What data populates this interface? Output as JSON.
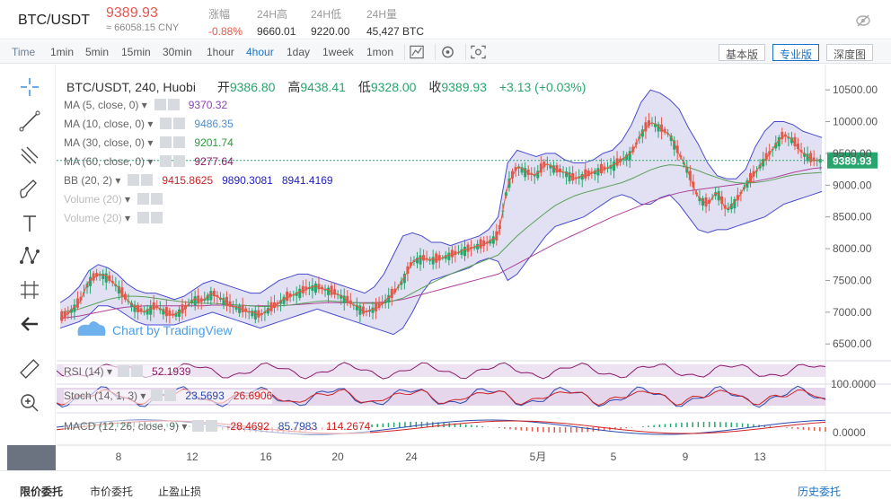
{
  "header": {
    "pair": "BTC/USDT",
    "price": "9389.93",
    "cny": "≈ 66058.15 CNY",
    "stats": [
      {
        "label": "涨幅",
        "value": "-0.88%",
        "red": true
      },
      {
        "label": "24H高",
        "value": "9660.01"
      },
      {
        "label": "24H低",
        "value": "9220.00"
      },
      {
        "label": "24H量",
        "value": "45,427 BTC"
      }
    ]
  },
  "toolbar": {
    "time_label": "Time",
    "intervals": [
      "1min",
      "5min",
      "15min",
      "30min",
      "1hour",
      "4hour",
      "1day",
      "1week",
      "1mon"
    ],
    "active_interval": "4hour",
    "versions": [
      "基本版",
      "专业版",
      "深度图"
    ],
    "active_version": "专业版"
  },
  "legend": {
    "title": "BTC/USDT, 240, Huobi",
    "open_label": "开",
    "open": "9386.80",
    "high_label": "高",
    "high": "9438.41",
    "low_label": "低",
    "low": "9328.00",
    "close_label": "收",
    "close": "9389.93",
    "change": "+3.13 (+0.03%)",
    "indicators": [
      {
        "name": "MA (5, close, 0)",
        "values": [
          "9370.32"
        ],
        "colors": [
          "#8a3fb5"
        ]
      },
      {
        "name": "MA (10, close, 0)",
        "values": [
          "9486.35"
        ],
        "colors": [
          "#4a8fd8"
        ]
      },
      {
        "name": "MA (30, close, 0)",
        "values": [
          "9201.74"
        ],
        "colors": [
          "#2a9a3a"
        ]
      },
      {
        "name": "MA (60, close, 0)",
        "values": [
          "9277.64"
        ],
        "colors": [
          "#8a1a6a"
        ]
      },
      {
        "name": "BB (20, 2)",
        "values": [
          "9415.8625",
          "9890.3081",
          "8941.4169"
        ],
        "colors": [
          "#d02020",
          "#2020c0",
          "#2020c0"
        ]
      },
      {
        "name": "Volume (20)",
        "values": [],
        "colors": []
      },
      {
        "name": "Volume (20)",
        "values": [],
        "colors": []
      }
    ],
    "watermark": "Chart by TradingView"
  },
  "sub_panels": {
    "rsi": {
      "name": "RSI (14)",
      "values": [
        "52.1939"
      ],
      "colors": [
        "#8a1a6a"
      ],
      "axis_label": "100.0000"
    },
    "stoch": {
      "name": "Stoch (14, 1, 3)",
      "values": [
        "23.5693",
        "26.6906"
      ],
      "colors": [
        "#2a4ab0",
        "#d02020"
      ]
    },
    "macd": {
      "name": "MACD (12, 26, close, 9)",
      "values": [
        "-28.4692",
        "85.7983",
        "114.2674"
      ],
      "colors": [
        "#d02020",
        "#2a4ab0",
        "#d02020"
      ],
      "axis_label": "0.0000"
    }
  },
  "colors": {
    "up": "#26a66c",
    "down": "#e5574d",
    "bb_fill": "#c8c8ea",
    "bb_line": "#4a4ad0",
    "ma30": "#5aa05a",
    "ma60": "#b0409a",
    "ma_fast": "#e85a3a",
    "price_tag": "#26a66c"
  },
  "chart_data": {
    "type": "candlestick",
    "symbol": "BTC/USDT",
    "interval": "240",
    "y_axis": {
      "ticks": [
        "10500.00",
        "10000.00",
        "9500.00",
        "9000.00",
        "8500.00",
        "8000.00",
        "7500.00",
        "7000.00",
        "6500.00"
      ],
      "ylim": [
        6150,
        10700
      ]
    },
    "x_axis": {
      "ticks": [
        "8",
        "12",
        "16",
        "20",
        "24",
        "5月",
        "5",
        "9",
        "13"
      ]
    },
    "last_price_label": "9389.93",
    "close_series": [
      6900,
      7000,
      7150,
      7480,
      7600,
      7550,
      7400,
      7200,
      7050,
      7000,
      7100,
      7000,
      6950,
      7050,
      7200,
      7180,
      7300,
      7200,
      7100,
      7050,
      7000,
      6950,
      7050,
      7150,
      7250,
      7300,
      7380,
      7400,
      7350,
      7300,
      7200,
      7100,
      7000,
      7050,
      7150,
      7300,
      7500,
      7800,
      7850,
      7820,
      7850,
      7900,
      7950,
      8000,
      8050,
      8100,
      8200,
      9000,
      9300,
      9200,
      9150,
      9350,
      9250,
      9200,
      9100,
      9150,
      9200,
      9250,
      9300,
      9400,
      9500,
      9800,
      10000,
      9900,
      9800,
      9500,
      9200,
      8800,
      8700,
      8900,
      8600,
      8750,
      9000,
      9200,
      9400,
      9600,
      9800,
      9700,
      9500,
      9400,
      9390
    ],
    "bb_upper": [
      7150,
      7250,
      7400,
      7650,
      7750,
      7700,
      7600,
      7450,
      7350,
      7300,
      7300,
      7250,
      7200,
      7250,
      7350,
      7450,
      7500,
      7450,
      7400,
      7350,
      7300,
      7300,
      7400,
      7500,
      7550,
      7600,
      7600,
      7550,
      7500,
      7450,
      7400,
      7350,
      7300,
      7400,
      7600,
      7900,
      8200,
      8250,
      8200,
      8100,
      8100,
      8050,
      8100,
      8150,
      8200,
      8300,
      8500,
      9350,
      9550,
      9500,
      9450,
      9500,
      9500,
      9400,
      9350,
      9350,
      9400,
      9500,
      9550,
      9700,
      9950,
      10300,
      10500,
      10450,
      10350,
      10200,
      9900,
      9650,
      9350,
      9150,
      9100,
      9100,
      9250,
      9600,
      9850,
      10000,
      10000,
      9950,
      9850,
      9800,
      9750
    ],
    "bb_lower": [
      6750,
      6800,
      6850,
      6950,
      7100,
      7100,
      7050,
      6950,
      6850,
      6800,
      6800,
      6800,
      6800,
      6850,
      6900,
      6950,
      7000,
      6950,
      6900,
      6850,
      6800,
      6750,
      6800,
      6850,
      6900,
      6950,
      7000,
      7050,
      7000,
      6950,
      6900,
      6850,
      6800,
      6750,
      6700,
      6650,
      6750,
      7000,
      7300,
      7500,
      7550,
      7600,
      7650,
      7700,
      7800,
      7850,
      7800,
      7500,
      7600,
      7800,
      8000,
      8200,
      8350,
      8400,
      8450,
      8500,
      8600,
      8700,
      8800,
      8850,
      8800,
      8700,
      8700,
      8800,
      8850,
      8700,
      8500,
      8300,
      8250,
      8300,
      8300,
      8350,
      8400,
      8450,
      8500,
      8600,
      8700,
      8750,
      8800,
      8850,
      8900
    ],
    "ma30": [
      7000,
      7020,
      7050,
      7100,
      7150,
      7200,
      7230,
      7250,
      7250,
      7240,
      7220,
      7200,
      7180,
      7160,
      7150,
      7140,
      7140,
      7130,
      7120,
      7110,
      7100,
      7090,
      7090,
      7100,
      7110,
      7130,
      7150,
      7170,
      7180,
      7170,
      7160,
      7150,
      7140,
      7140,
      7150,
      7180,
      7220,
      7300,
      7380,
      7460,
      7530,
      7600,
      7660,
      7720,
      7780,
      7840,
      7900,
      8050,
      8200,
      8330,
      8450,
      8570,
      8680,
      8760,
      8830,
      8880,
      8920,
      8960,
      9000,
      9040,
      9100,
      9170,
      9240,
      9290,
      9320,
      9310,
      9280,
      9230,
      9170,
      9120,
      9070,
      9040,
      9030,
      9040,
      9060,
      9090,
      9130,
      9160,
      9180,
      9190,
      9200
    ],
    "ma60": [
      6900,
      6920,
      6940,
      6970,
      7000,
      7030,
      7060,
      7080,
      7090,
      7100,
      7100,
      7100,
      7100,
      7100,
      7100,
      7100,
      7110,
      7110,
      7110,
      7110,
      7100,
      7100,
      7100,
      7100,
      7110,
      7120,
      7130,
      7140,
      7150,
      7150,
      7150,
      7150,
      7150,
      7150,
      7160,
      7180,
      7200,
      7240,
      7280,
      7320,
      7360,
      7400,
      7440,
      7480,
      7520,
      7560,
      7600,
      7680,
      7760,
      7840,
      7920,
      8000,
      8080,
      8150,
      8220,
      8290,
      8360,
      8430,
      8500,
      8560,
      8620,
      8680,
      8740,
      8790,
      8840,
      8880,
      8910,
      8930,
      8950,
      8970,
      8990,
      9010,
      9030,
      9060,
      9090,
      9120,
      9160,
      9200,
      9230,
      9260,
      9277
    ]
  }
}
